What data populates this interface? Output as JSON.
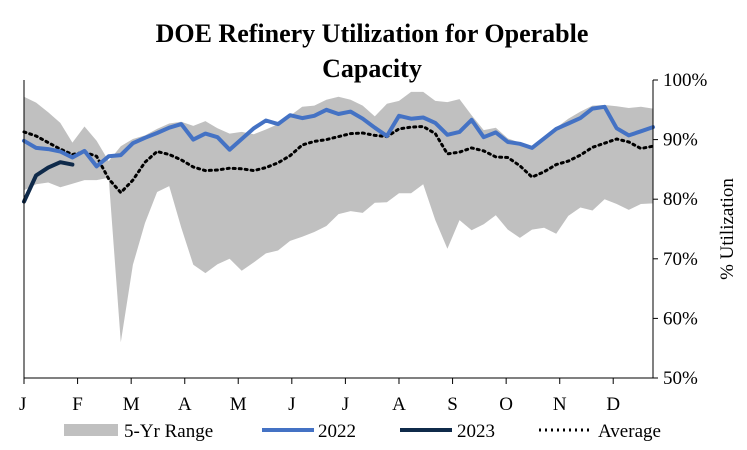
{
  "chart_data": {
    "type": "line",
    "title_line1": "DOE Refinery Utilization for Operable",
    "title_line2": "Capacity",
    "ylabel": "% Utilization",
    "ylim": [
      0.5,
      1.0
    ],
    "y_ticks": [
      "50%",
      "60%",
      "70%",
      "80%",
      "90%",
      "100%"
    ],
    "y_tick_values": [
      0.5,
      0.6,
      0.7,
      0.8,
      0.9,
      1.0
    ],
    "x_domain": [
      1,
      53
    ],
    "month_labels": [
      "J",
      "F",
      "M",
      "A",
      "M",
      "J",
      "J",
      "A",
      "S",
      "O",
      "N",
      "D"
    ],
    "month_weeks": [
      1,
      5.43,
      9.86,
      14.29,
      18.71,
      23.14,
      27.57,
      32,
      36.43,
      40.86,
      45.29,
      49.71
    ],
    "grid": false,
    "legend_position": "bottom",
    "colors": {
      "range": "#c0c0c0",
      "y2022": "#4472c4",
      "y2023": "#0f2a4a",
      "average": "#000000"
    },
    "legend": {
      "range": "5-Yr Range",
      "y2022": "2022",
      "y2023": "2023",
      "average": "Average"
    },
    "range_high": [
      0.972,
      0.962,
      0.946,
      0.928,
      0.895,
      0.922,
      0.898,
      0.864,
      0.889,
      0.901,
      0.907,
      0.918,
      0.927,
      0.93,
      0.923,
      0.931,
      0.919,
      0.91,
      0.913,
      0.909,
      0.917,
      0.926,
      0.94,
      0.955,
      0.957,
      0.967,
      0.972,
      0.967,
      0.957,
      0.939,
      0.96,
      0.965,
      0.98,
      0.98,
      0.965,
      0.963,
      0.968,
      0.941,
      0.916,
      0.92,
      0.902,
      0.895,
      0.887,
      0.9,
      0.92,
      0.935,
      0.947,
      0.957,
      0.958,
      0.956,
      0.953,
      0.955,
      0.952
    ],
    "range_low": [
      0.815,
      0.825,
      0.828,
      0.82,
      0.826,
      0.832,
      0.832,
      0.836,
      0.56,
      0.69,
      0.76,
      0.812,
      0.822,
      0.752,
      0.69,
      0.676,
      0.691,
      0.7,
      0.68,
      0.694,
      0.709,
      0.714,
      0.73,
      0.737,
      0.745,
      0.755,
      0.775,
      0.78,
      0.777,
      0.794,
      0.795,
      0.81,
      0.81,
      0.825,
      0.765,
      0.717,
      0.765,
      0.748,
      0.758,
      0.773,
      0.749,
      0.735,
      0.749,
      0.752,
      0.742,
      0.772,
      0.786,
      0.781,
      0.8,
      0.792,
      0.782,
      0.792,
      0.793
    ],
    "series": [
      {
        "name": "2022",
        "x": [
          1,
          2,
          3,
          4,
          5,
          6,
          7,
          8,
          9,
          10,
          11,
          12,
          13,
          14,
          15,
          16,
          17,
          18,
          19,
          20,
          21,
          22,
          23,
          24,
          25,
          26,
          27,
          28,
          29,
          30,
          31,
          32,
          33,
          34,
          35,
          36,
          37,
          38,
          39,
          40,
          41,
          42,
          43,
          44,
          45,
          46,
          47,
          48,
          49,
          50,
          51,
          52,
          53
        ],
        "values": [
          0.898,
          0.886,
          0.884,
          0.88,
          0.87,
          0.881,
          0.855,
          0.872,
          0.874,
          0.894,
          0.903,
          0.911,
          0.92,
          0.926,
          0.9,
          0.91,
          0.904,
          0.883,
          0.901,
          0.919,
          0.932,
          0.926,
          0.941,
          0.936,
          0.94,
          0.95,
          0.943,
          0.947,
          0.935,
          0.92,
          0.906,
          0.94,
          0.935,
          0.937,
          0.928,
          0.908,
          0.913,
          0.933,
          0.904,
          0.912,
          0.896,
          0.893,
          0.886,
          0.902,
          0.918,
          0.927,
          0.936,
          0.952,
          0.955,
          0.919,
          0.907,
          0.914,
          0.921
        ]
      },
      {
        "name": "2023",
        "x": [
          1,
          2,
          3,
          4,
          5
        ],
        "values": [
          0.796,
          0.84,
          0.853,
          0.862,
          0.858
        ]
      },
      {
        "name": "Average",
        "x": [
          1,
          2,
          3,
          4,
          5,
          6,
          7,
          8,
          9,
          10,
          11,
          12,
          13,
          14,
          15,
          16,
          17,
          18,
          19,
          20,
          21,
          22,
          23,
          24,
          25,
          26,
          27,
          28,
          29,
          30,
          31,
          32,
          33,
          34,
          35,
          36,
          37,
          38,
          39,
          40,
          41,
          42,
          43,
          44,
          45,
          46,
          47,
          48,
          49,
          50,
          51,
          52,
          53
        ],
        "values": [
          0.913,
          0.906,
          0.895,
          0.884,
          0.875,
          0.879,
          0.872,
          0.834,
          0.811,
          0.832,
          0.862,
          0.88,
          0.875,
          0.866,
          0.854,
          0.848,
          0.849,
          0.852,
          0.851,
          0.848,
          0.853,
          0.861,
          0.873,
          0.891,
          0.897,
          0.9,
          0.905,
          0.91,
          0.911,
          0.907,
          0.905,
          0.918,
          0.921,
          0.922,
          0.91,
          0.876,
          0.879,
          0.886,
          0.881,
          0.871,
          0.87,
          0.856,
          0.837,
          0.846,
          0.858,
          0.864,
          0.874,
          0.887,
          0.894,
          0.901,
          0.896,
          0.885,
          0.889
        ]
      }
    ]
  }
}
